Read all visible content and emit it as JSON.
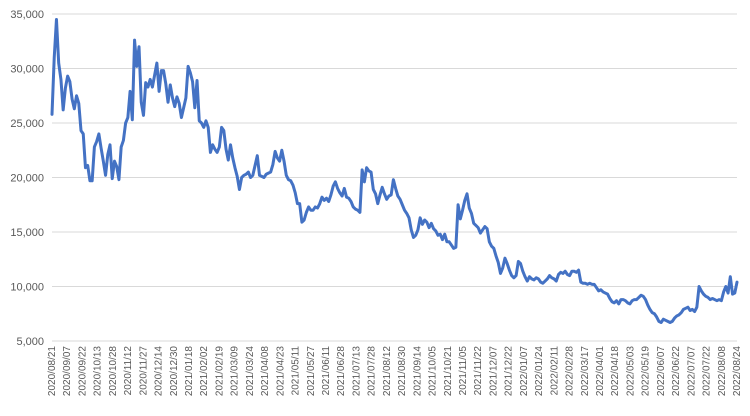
{
  "chart_data": {
    "type": "line",
    "title": "",
    "xlabel": "",
    "ylabel": "",
    "ylim": [
      5000,
      35000
    ],
    "y_ticks": [
      5000,
      10000,
      15000,
      20000,
      25000,
      30000,
      35000
    ],
    "y_tick_labels": [
      "5,000",
      "10,000",
      "15,000",
      "20,000",
      "25,000",
      "30,000",
      "35,000"
    ],
    "x_tick_labels": [
      "2020/08/21",
      "2020/09/07",
      "2020/09/22",
      "2020/10/13",
      "2020/10/28",
      "2020/11/12",
      "2020/11/27",
      "2020/12/14",
      "2020/12/30",
      "2021/01/18",
      "2021/02/02",
      "2021/02/19",
      "2021/03/09",
      "2021/03/24",
      "2021/04/08",
      "2021/04/23",
      "2021/05/11",
      "2021/05/27",
      "2021/06/11",
      "2021/06/28",
      "2021/07/13",
      "2021/07/28",
      "2021/08/12",
      "2021/08/30",
      "2021/09/14",
      "2021/10/05",
      "2021/10/21",
      "2021/11/05",
      "2021/11/22",
      "2021/12/07",
      "2021/12/22",
      "2022/01/07",
      "2022/01/24",
      "2022/02/11",
      "2022/02/28",
      "2022/03/17",
      "2022/04/01",
      "2022/04/18",
      "2022/05/03",
      "2022/05/19",
      "2022/06/07",
      "2022/06/22",
      "2022/07/07",
      "2022/07/22",
      "2022/08/08",
      "2022/08/24"
    ],
    "grid": true,
    "legend": "none",
    "series": [
      {
        "color": "#4472c4",
        "values": [
          25800,
          31000,
          34500,
          30500,
          29000,
          26200,
          28200,
          29300,
          28800,
          27200,
          26300,
          27500,
          26800,
          24300,
          24000,
          20900,
          21100,
          19700,
          19700,
          22800,
          23300,
          24000,
          22700,
          21500,
          20200,
          22100,
          23000,
          19900,
          21500,
          21000,
          19800,
          22800,
          23400,
          25000,
          25500,
          27900,
          25300,
          32600,
          30200,
          32000,
          26900,
          25700,
          28700,
          28300,
          29000,
          28300,
          29400,
          30500,
          27900,
          29800,
          29800,
          28600,
          26900,
          28500,
          27300,
          26500,
          27400,
          26800,
          25500,
          26400,
          27300,
          30200,
          29600,
          28800,
          26400,
          28900,
          25200,
          25000,
          24600,
          25200,
          24600,
          22300,
          23000,
          22600,
          22300,
          22800,
          24600,
          24300,
          22600,
          21600,
          23000,
          21800,
          20900,
          20100,
          18900,
          20000,
          20200,
          20300,
          20500,
          20000,
          20200,
          21100,
          22000,
          20200,
          20100,
          20000,
          20300,
          20400,
          20500,
          21200,
          22400,
          21800,
          21500,
          22500,
          21500,
          20200,
          19800,
          19700,
          19300,
          18600,
          17600,
          17600,
          15900,
          16100,
          16800,
          17300,
          17000,
          17000,
          17300,
          17200,
          17600,
          18200,
          17900,
          18100,
          17800,
          18400,
          19200,
          19600,
          19000,
          18600,
          18300,
          19000,
          18200,
          18100,
          17800,
          17300,
          17100,
          17000,
          16800,
          20700,
          19600,
          20900,
          20600,
          20500,
          18900,
          18500,
          17600,
          18400,
          19100,
          18500,
          18000,
          18300,
          18400,
          19800,
          19000,
          18300,
          18000,
          17500,
          17000,
          16700,
          16300,
          15200,
          14500,
          14700,
          15200,
          16300,
          15700,
          16100,
          15900,
          15400,
          15800,
          15300,
          15100,
          14700,
          14800,
          14300,
          14800,
          14100,
          14100,
          13800,
          13500,
          13600,
          17500,
          16200,
          17000,
          17900,
          18500,
          17200,
          16700,
          15800,
          15600,
          15400,
          14900,
          15200,
          15500,
          15300,
          14100,
          13700,
          13500,
          12800,
          12200,
          11200,
          11700,
          12600,
          12100,
          11500,
          11000,
          10800,
          11000,
          12300,
          12100,
          11400,
          10900,
          10500,
          10900,
          10700,
          10600,
          10800,
          10700,
          10400,
          10300,
          10500,
          10700,
          11000,
          10800,
          10700,
          10500,
          11100,
          11300,
          11200,
          11400,
          11100,
          11000,
          11400,
          11400,
          11300,
          11500,
          10400,
          10300,
          10300,
          10200,
          10300,
          10200,
          10200,
          9900,
          9600,
          9700,
          9500,
          9400,
          9300,
          8900,
          8600,
          8500,
          8700,
          8400,
          8800,
          8800,
          8700,
          8500,
          8400,
          8700,
          8800,
          8800,
          9000,
          9200,
          9100,
          8800,
          8300,
          7900,
          7600,
          7500,
          7200,
          6800,
          6700,
          7000,
          6900,
          6800,
          6700,
          6800,
          7100,
          7300,
          7400,
          7600,
          7900,
          8000,
          8100,
          7800,
          7900,
          7700,
          8100,
          10000,
          9600,
          9300,
          9100,
          9000,
          8800,
          8900,
          8800,
          8700,
          8800,
          8700,
          9500,
          10000,
          9400,
          10900,
          9300,
          9400,
          10400
        ]
      }
    ]
  }
}
